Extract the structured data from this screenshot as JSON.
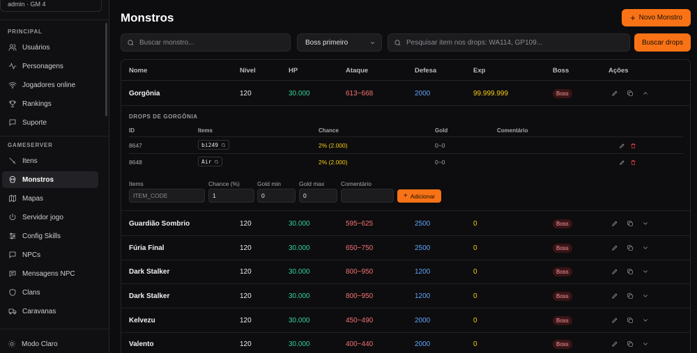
{
  "sidebar": {
    "user_label": "admin · GM 4",
    "sections": [
      {
        "title": "PRINCIPAL",
        "items": [
          {
            "label": "Usuários",
            "icon": "users-icon"
          },
          {
            "label": "Personagens",
            "icon": "activity-icon"
          },
          {
            "label": "Jogadores online",
            "icon": "wifi-icon"
          },
          {
            "label": "Rankings",
            "icon": "trophy-icon"
          },
          {
            "label": "Suporte",
            "icon": "message-icon"
          }
        ]
      },
      {
        "title": "GAMESERVER",
        "items": [
          {
            "label": "Itens",
            "icon": "sword-icon"
          },
          {
            "label": "Monstros",
            "icon": "skull-icon"
          },
          {
            "label": "Mapas",
            "icon": "map-icon"
          },
          {
            "label": "Servidor jogo",
            "icon": "power-icon"
          },
          {
            "label": "Config Skills",
            "icon": "sliders-icon"
          },
          {
            "label": "NPCs",
            "icon": "message-square-icon"
          },
          {
            "label": "Mensagens NPC",
            "icon": "message-circle-icon"
          },
          {
            "label": "Clans",
            "icon": "shield-icon"
          },
          {
            "label": "Caravanas",
            "icon": "truck-icon"
          }
        ]
      }
    ],
    "active_item": "Monstros",
    "mode_label": "Modo Claro"
  },
  "page": {
    "title": "Monstros",
    "new_button": "Novo Monstro",
    "search_placeholder": "Buscar monstro...",
    "sort_value": "Boss primeiro",
    "drops_search_placeholder": "Pesquisar item nos drops: WA114, GP109...",
    "drops_button": "Buscar drops"
  },
  "table": {
    "headers": [
      "Nome",
      "Nível",
      "HP",
      "Ataque",
      "Defesa",
      "Exp",
      "Boss",
      "Ações"
    ],
    "rows": [
      {
        "name": "Gorgônia",
        "level": "120",
        "hp": "30.000",
        "attack": "613~668",
        "defense": "2000",
        "exp": "99.999.999",
        "boss": "Boss",
        "expanded": true
      },
      {
        "name": "Guardião Sombrio",
        "level": "120",
        "hp": "30.000",
        "attack": "595~625",
        "defense": "2500",
        "exp": "0",
        "boss": "Boss"
      },
      {
        "name": "Fúria Final",
        "level": "120",
        "hp": "30.000",
        "attack": "650~750",
        "defense": "2500",
        "exp": "0",
        "boss": "Boss"
      },
      {
        "name": "Dark Stalker",
        "level": "120",
        "hp": "30.000",
        "attack": "800~950",
        "defense": "1200",
        "exp": "0",
        "boss": "Boss"
      },
      {
        "name": "Dark Stalker",
        "level": "120",
        "hp": "30.000",
        "attack": "800~950",
        "defense": "1200",
        "exp": "0",
        "boss": "Boss"
      },
      {
        "name": "Kelvezu",
        "level": "120",
        "hp": "30.000",
        "attack": "450~490",
        "defense": "2000",
        "exp": "0",
        "boss": "Boss"
      },
      {
        "name": "Valento",
        "level": "120",
        "hp": "30.000",
        "attack": "400~440",
        "defense": "2000",
        "exp": "0",
        "boss": "Boss"
      }
    ]
  },
  "drops": {
    "title": "DROPS DE GORGÔNIA",
    "headers": [
      "ID",
      "Items",
      "Chance",
      "Gold",
      "Comentário"
    ],
    "rows": [
      {
        "id": "8647",
        "item": "bi249",
        "chance": "2% (2.000)",
        "gold": "0~0"
      },
      {
        "id": "8648",
        "item": "Air",
        "chance": "2% (2.000)",
        "gold": "0~0"
      }
    ],
    "form": {
      "labels": {
        "items": "Items",
        "chance": "Chance (%)",
        "gold_min": "Gold min",
        "gold_max": "Gold max",
        "comment": "Comentário"
      },
      "items_placeholder": "ITEM_CODE",
      "chance_value": "1",
      "gold_min_value": "0",
      "gold_max_value": "0",
      "add_button": "Adicionar"
    }
  },
  "colors": {
    "accent": "#f97316",
    "hp": "#34d399",
    "attack": "#f87171",
    "defense": "#60a5fa",
    "exp": "#facc15",
    "delete": "#ef4444"
  }
}
